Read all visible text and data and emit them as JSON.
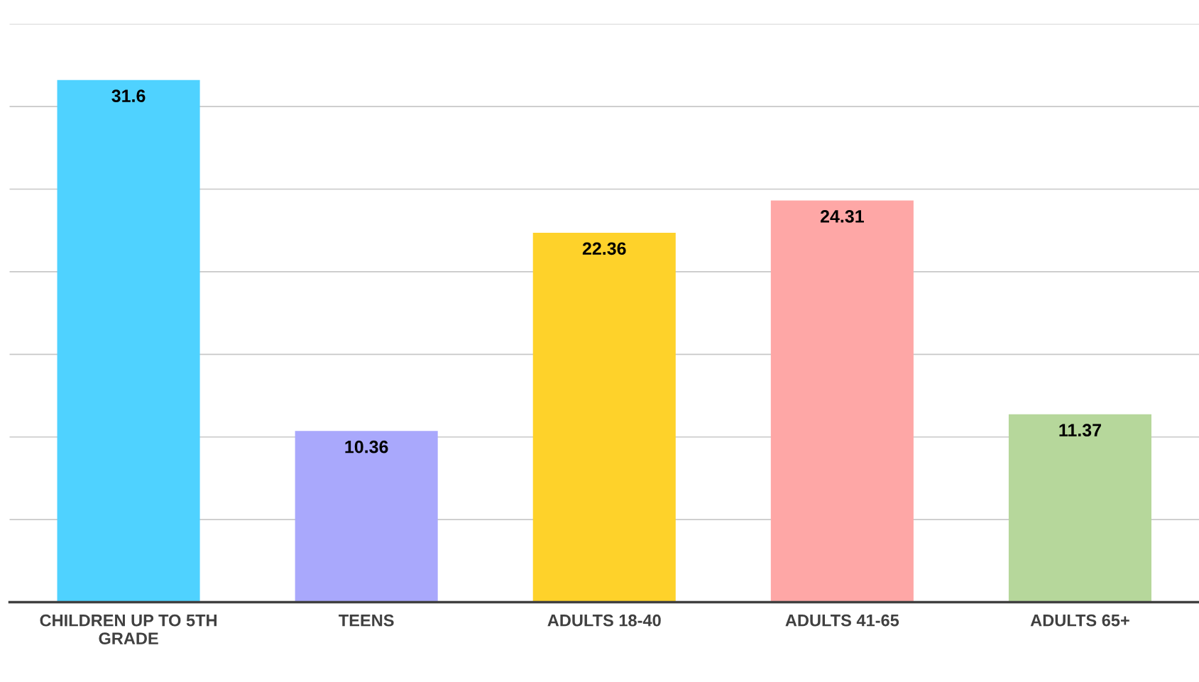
{
  "chart_data": {
    "type": "bar",
    "categories": [
      "CHILDREN UP TO 5TH\nGRADE",
      "TEENS",
      "ADULTS 18-40",
      "ADULTS 41-65",
      "ADULTS 65+"
    ],
    "values": [
      31.6,
      10.36,
      22.36,
      24.31,
      11.37
    ],
    "colors": [
      "#4fd2ff",
      "#a9a8fc",
      "#fed22a",
      "#fea7a6",
      "#b6d79b"
    ],
    "ylim": [
      0,
      35
    ],
    "yticks": [
      {
        "value": 0,
        "label": null
      },
      {
        "value": 5,
        "label": null
      },
      {
        "value": 10,
        "label": null
      },
      {
        "value": 15,
        "label": null
      },
      {
        "value": 20,
        "label": null
      },
      {
        "value": 25,
        "label": null
      },
      {
        "value": 30,
        "label": null
      },
      {
        "value": 35,
        "label": null
      }
    ],
    "tick_labels": "x",
    "grid": "y",
    "data_labels": true
  }
}
